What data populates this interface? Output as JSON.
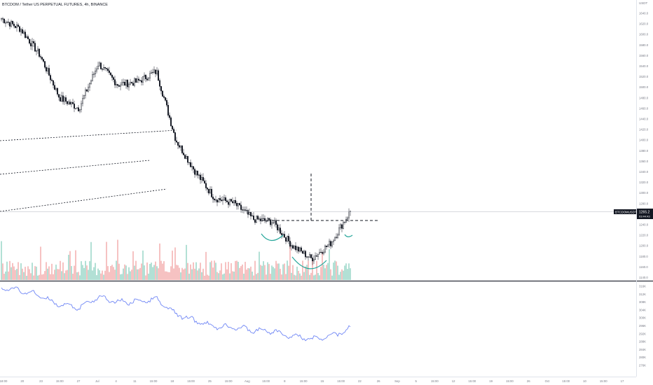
{
  "header": {
    "symbol_title": "BTCDOM / Tether US PERPETUAL FUTURES, 4h, BINANCE"
  },
  "price_axis": {
    "currency": "USDT",
    "ticks": [
      "1640.0",
      "1620.0",
      "1600.0",
      "1580.0",
      "1560.0",
      "1540.0",
      "1520.0",
      "1500.0",
      "1480.0",
      "1460.0",
      "1440.0",
      "1420.0",
      "1400.0",
      "1380.0",
      "1360.0",
      "1340.0",
      "1320.0",
      "1300.0",
      "1280.0",
      "1240.0",
      "1220.0",
      "1200.0",
      "1180.0",
      "1160.0",
      "1140.0"
    ],
    "last_price_symbol": "BTCDOMUSDTPERP",
    "last_price": "1265.2",
    "countdown": "03:44:43"
  },
  "volume_axis": {
    "ticks": [
      "316K",
      "312K",
      "308K",
      "304K",
      "300K",
      "296K",
      "292K",
      "288K",
      "284K",
      "280K",
      "276K"
    ]
  },
  "time_axis": {
    "labels": [
      "18:00",
      "20",
      "23",
      "15:00",
      "27",
      "Jul",
      "4",
      "11",
      "15:00",
      "18",
      "15:00",
      "25",
      "15:00",
      "Aug",
      "15:00",
      "8",
      "15:00",
      "15",
      "15:00",
      "22",
      "26",
      "Sep",
      "5",
      "15:00",
      "12",
      "15:00",
      "19",
      "15:00",
      "26",
      "Oct",
      "15:00",
      "10",
      "15:00",
      "17"
    ]
  },
  "colors": {
    "up_volume": "#9fd9cb",
    "down_volume": "#f4b4b4",
    "candle": "#131722",
    "teal_drawing": "#26a69a",
    "indicator_line": "#6f86f5",
    "axis_text": "#787b86",
    "price_label_bg": "#131722"
  },
  "chart_data": {
    "type": "candlestick",
    "title": "BTCDOM / Tether US PERPETUAL FUTURES, 4h, BINANCE",
    "last_price": 1265.2,
    "price_range": [
      1140,
      1660
    ],
    "close_path": [
      {
        "x": "18:00",
        "y": 1630
      },
      {
        "x": "20",
        "y": 1610
      },
      {
        "x": "23",
        "y": 1560
      },
      {
        "x": "15:00",
        "y": 1480
      },
      {
        "x": "27",
        "y": 1460
      },
      {
        "x": "Jul",
        "y": 1545
      },
      {
        "x": "4",
        "y": 1505
      },
      {
        "x": "11",
        "y": 1510
      },
      {
        "x": "15:00",
        "y": 1530
      },
      {
        "x": "18",
        "y": 1400
      },
      {
        "x": "15:00",
        "y": 1340
      },
      {
        "x": "25",
        "y": 1290
      },
      {
        "x": "15:00",
        "y": 1280
      },
      {
        "x": "Aug",
        "y": 1250
      },
      {
        "x": "8",
        "y": 1245
      },
      {
        "x": "15:00",
        "y": 1200
      },
      {
        "x": "15",
        "y": 1175
      },
      {
        "x": "15:00",
        "y": 1205
      },
      {
        "x": "22",
        "y": 1265
      }
    ]
  }
}
